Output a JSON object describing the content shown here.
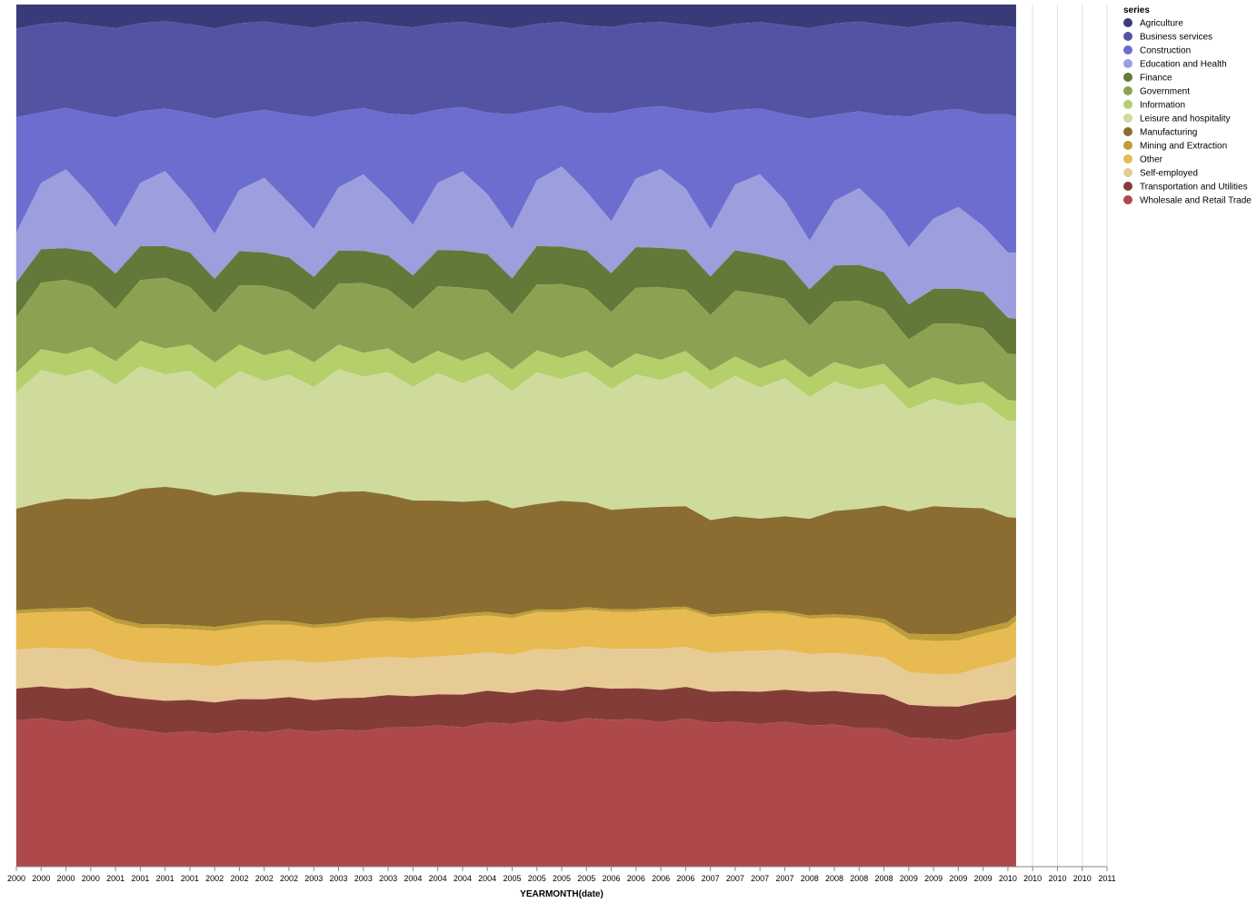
{
  "chart_data": {
    "type": "area",
    "stacked": "normalize",
    "x_label": "YEARMONTH(date)",
    "legend_title": "series",
    "legend_position": "right",
    "grid": true,
    "xlim": [
      2000,
      2011
    ],
    "xticks": [
      2000,
      {
        "value": 2000.25,
        "label": "2000"
      },
      {
        "value": 2000.5,
        "label": "2000"
      },
      {
        "value": 2000.75,
        "label": "2000"
      },
      2001,
      {
        "value": 2001.25,
        "label": "2001"
      },
      {
        "value": 2001.5,
        "label": "2001"
      },
      {
        "value": 2001.75,
        "label": "2001"
      },
      2002,
      {
        "value": 2002.25,
        "label": "2002"
      },
      {
        "value": 2002.5,
        "label": "2002"
      },
      {
        "value": 2002.75,
        "label": "2002"
      },
      2003,
      {
        "value": 2003.25,
        "label": "2003"
      },
      {
        "value": 2003.5,
        "label": "2003"
      },
      {
        "value": 2003.75,
        "label": "2003"
      },
      2004,
      {
        "value": 2004.25,
        "label": "2004"
      },
      {
        "value": 2004.5,
        "label": "2004"
      },
      {
        "value": 2004.75,
        "label": "2004"
      },
      2005,
      {
        "value": 2005.25,
        "label": "2005"
      },
      {
        "value": 2005.5,
        "label": "2005"
      },
      {
        "value": 2005.75,
        "label": "2005"
      },
      2006,
      {
        "value": 2006.25,
        "label": "2006"
      },
      {
        "value": 2006.5,
        "label": "2006"
      },
      {
        "value": 2006.75,
        "label": "2006"
      },
      2007,
      {
        "value": 2007.25,
        "label": "2007"
      },
      {
        "value": 2007.5,
        "label": "2007"
      },
      {
        "value": 2007.75,
        "label": "2007"
      },
      2008,
      {
        "value": 2008.25,
        "label": "2008"
      },
      {
        "value": 2008.5,
        "label": "2008"
      },
      {
        "value": 2008.75,
        "label": "2008"
      },
      2009,
      {
        "value": 2009.25,
        "label": "2009"
      },
      {
        "value": 2009.5,
        "label": "2009"
      },
      {
        "value": 2009.75,
        "label": "2009"
      },
      2010,
      {
        "value": 2010.25,
        "label": "2010"
      },
      {
        "value": 2010.5,
        "label": "2010"
      },
      {
        "value": 2010.75,
        "label": "2010"
      },
      2011
    ],
    "x": [
      2000,
      2000.25,
      2000.5,
      2000.75,
      2001,
      2001.25,
      2001.5,
      2001.75,
      2002,
      2002.25,
      2002.5,
      2002.75,
      2003,
      2003.25,
      2003.5,
      2003.75,
      2004,
      2004.25,
      2004.5,
      2004.75,
      2005,
      2005.25,
      2005.5,
      2005.75,
      2006,
      2006.25,
      2006.5,
      2006.75,
      2007,
      2007.25,
      2007.5,
      2007.75,
      2008,
      2008.25,
      2008.5,
      2008.75,
      2009,
      2009.25,
      2009.5,
      2009.75,
      2010,
      2010.083
    ],
    "series": [
      {
        "name": "Agriculture",
        "color": "#393b79",
        "values": [
          2.8,
          2.2,
          2.0,
          2.4,
          2.8,
          2.2,
          2.0,
          2.4,
          2.9,
          2.2,
          2.0,
          2.4,
          2.8,
          2.2,
          2.0,
          2.4,
          2.7,
          2.2,
          2.0,
          2.4,
          2.8,
          2.2,
          2.0,
          2.4,
          2.6,
          2.1,
          2.0,
          2.3,
          2.7,
          2.2,
          2.0,
          2.4,
          2.8,
          2.2,
          2.0,
          2.4,
          2.8,
          2.3,
          2.1,
          2.5,
          2.6,
          2.7
        ]
      },
      {
        "name": "Business services",
        "color": "#5254a3",
        "values": [
          10.3,
          10.0,
          9.8,
          10.2,
          10.6,
          10.4,
          10.5,
          10.8,
          11.0,
          10.6,
          10.4,
          10.6,
          10.8,
          10.4,
          10.2,
          10.5,
          10.4,
          10.0,
          9.9,
          10.2,
          10.1,
          9.8,
          9.6,
          10.0,
          10.0,
          9.7,
          9.6,
          9.8,
          10.0,
          9.8,
          9.9,
          10.3,
          10.8,
          10.6,
          10.5,
          10.8,
          10.9,
          10.6,
          10.7,
          10.8,
          10.5,
          10.6
        ]
      },
      {
        "name": "Construction",
        "color": "#6b6ecf",
        "values": [
          13.4,
          8.0,
          7.0,
          9.5,
          13.0,
          8.5,
          7.5,
          10.5,
          14.0,
          9.0,
          8.0,
          10.5,
          13.5,
          9.0,
          7.8,
          10.0,
          13.0,
          8.5,
          7.5,
          9.5,
          13.5,
          8.0,
          7.0,
          9.0,
          12.5,
          8.0,
          7.2,
          9.0,
          13.5,
          8.5,
          7.5,
          10.0,
          14.5,
          10.0,
          9.0,
          11.5,
          16.0,
          13.0,
          12.0,
          13.5,
          16.5,
          16.0
        ]
      },
      {
        "name": "Education and Health",
        "color": "#9c9ede",
        "values": [
          5.8,
          7.5,
          9.0,
          6.5,
          5.5,
          7.5,
          9.0,
          6.5,
          5.5,
          7.2,
          8.8,
          6.5,
          5.8,
          7.5,
          9.0,
          6.8,
          6.0,
          7.8,
          9.2,
          7.0,
          5.8,
          7.5,
          9.2,
          6.8,
          6.0,
          7.8,
          9.0,
          7.0,
          5.5,
          7.5,
          9.2,
          7.0,
          5.8,
          7.5,
          9.0,
          7.2,
          7.0,
          8.5,
          10.0,
          8.0,
          7.8,
          7.8
        ]
      },
      {
        "name": "Finance",
        "color": "#637939",
        "values": [
          4.0,
          3.8,
          3.6,
          4.0,
          4.2,
          4.0,
          3.8,
          4.2,
          4.2,
          4.0,
          3.9,
          4.1,
          4.0,
          3.9,
          3.8,
          4.0,
          4.0,
          4.2,
          4.3,
          4.2,
          4.2,
          4.4,
          4.3,
          4.4,
          4.5,
          4.6,
          4.5,
          4.6,
          4.5,
          4.6,
          4.5,
          4.4,
          4.3,
          4.2,
          4.2,
          4.4,
          4.3,
          4.2,
          4.3,
          4.4,
          4.3,
          4.2
        ]
      },
      {
        "name": "Government",
        "color": "#8ca252",
        "values": [
          6.5,
          7.5,
          8.5,
          7.0,
          6.2,
          7.2,
          8.5,
          7.0,
          6.0,
          7.0,
          8.2,
          6.8,
          6.3,
          7.2,
          8.2,
          7.0,
          6.5,
          7.5,
          8.5,
          7.2,
          6.5,
          7.5,
          8.5,
          7.0,
          6.5,
          7.5,
          8.3,
          7.0,
          6.5,
          7.5,
          8.5,
          7.0,
          6.2,
          7.0,
          8.0,
          6.5,
          6.0,
          6.5,
          7.5,
          6.5,
          5.5,
          5.5
        ]
      },
      {
        "name": "Information",
        "color": "#b5cf6b",
        "values": [
          2.3,
          2.4,
          2.5,
          2.6,
          2.8,
          3.0,
          3.1,
          3.2,
          3.2,
          3.1,
          3.0,
          3.0,
          3.0,
          2.9,
          2.8,
          2.8,
          2.7,
          2.6,
          2.6,
          2.5,
          2.5,
          2.5,
          2.4,
          2.4,
          2.4,
          2.4,
          2.3,
          2.3,
          2.2,
          2.2,
          2.2,
          2.2,
          2.3,
          2.3,
          2.4,
          2.4,
          2.5,
          2.6,
          2.5,
          2.5,
          2.5,
          2.3
        ]
      },
      {
        "name": "Leisure and hospitality",
        "color": "#cedb9c",
        "values": [
          13.5,
          15.0,
          14.0,
          15.0,
          13.2,
          14.5,
          13.5,
          14.5,
          13.0,
          14.2,
          13.2,
          14.2,
          13.2,
          14.5,
          13.5,
          14.5,
          13.5,
          14.8,
          13.8,
          14.8,
          13.8,
          15.0,
          14.0,
          15.0,
          14.0,
          15.2,
          14.5,
          15.5,
          15.2,
          16.0,
          15.0,
          16.0,
          14.5,
          15.0,
          14.0,
          14.5,
          12.5,
          13.0,
          12.5,
          12.8,
          11.5,
          11.5
        ]
      },
      {
        "name": "Manufacturing",
        "color": "#8c6d31",
        "values": [
          11.8,
          12.0,
          12.5,
          12.5,
          14.5,
          16.0,
          16.5,
          16.5,
          16.0,
          15.5,
          15.0,
          15.0,
          15.5,
          15.5,
          15.0,
          14.5,
          14.0,
          13.5,
          13.0,
          13.0,
          12.5,
          12.0,
          12.5,
          12.0,
          11.5,
          11.5,
          11.5,
          11.5,
          11.0,
          11.0,
          10.5,
          11.0,
          11.5,
          12.0,
          12.5,
          13.5,
          15.0,
          15.5,
          15.5,
          14.5,
          12.5,
          11.5
        ]
      },
      {
        "name": "Mining and Extraction",
        "color": "#bd9e39",
        "values": [
          0.4,
          0.4,
          0.4,
          0.5,
          0.5,
          0.5,
          0.5,
          0.5,
          0.5,
          0.5,
          0.5,
          0.4,
          0.4,
          0.4,
          0.4,
          0.4,
          0.4,
          0.4,
          0.4,
          0.4,
          0.4,
          0.3,
          0.3,
          0.3,
          0.3,
          0.3,
          0.3,
          0.3,
          0.3,
          0.3,
          0.3,
          0.3,
          0.4,
          0.4,
          0.4,
          0.5,
          0.7,
          0.8,
          0.8,
          0.7,
          0.7,
          0.7
        ]
      },
      {
        "name": "Other",
        "color": "#e7ba52",
        "values": [
          4.2,
          4.0,
          4.2,
          4.3,
          4.2,
          4.0,
          4.2,
          4.2,
          4.3,
          4.1,
          4.3,
          4.2,
          4.2,
          4.1,
          4.3,
          4.3,
          4.3,
          4.2,
          4.4,
          4.3,
          4.3,
          4.2,
          4.3,
          4.2,
          4.3,
          4.2,
          4.4,
          4.3,
          4.2,
          4.1,
          4.3,
          4.2,
          4.2,
          4.1,
          4.2,
          4.1,
          4.0,
          4.0,
          4.1,
          4.0,
          4.0,
          4.2
        ]
      },
      {
        "name": "Self-employed",
        "color": "#e7cb94",
        "values": [
          4.5,
          4.4,
          4.6,
          4.5,
          4.4,
          4.3,
          4.5,
          4.4,
          4.4,
          4.3,
          4.5,
          4.4,
          4.5,
          4.4,
          4.6,
          4.5,
          4.5,
          4.4,
          4.6,
          4.5,
          4.5,
          4.6,
          4.7,
          4.6,
          4.6,
          4.5,
          4.7,
          4.6,
          4.5,
          4.5,
          4.7,
          4.6,
          4.5,
          4.4,
          4.5,
          4.4,
          4.0,
          3.9,
          4.0,
          4.2,
          4.5,
          4.5
        ]
      },
      {
        "name": "Transportation and Utilities",
        "color": "#843c39",
        "values": [
          3.7,
          3.6,
          3.8,
          3.7,
          3.8,
          3.7,
          3.9,
          3.8,
          3.8,
          3.7,
          3.9,
          3.8,
          3.8,
          3.7,
          3.9,
          3.8,
          3.7,
          3.6,
          3.8,
          3.7,
          3.6,
          3.5,
          3.7,
          3.6,
          3.6,
          3.5,
          3.7,
          3.6,
          3.6,
          3.5,
          3.7,
          3.7,
          4.0,
          3.9,
          4.1,
          4.0,
          4.0,
          3.9,
          4.1,
          4.0,
          4.0,
          4.1
        ]
      },
      {
        "name": "Wholesale and Retail Trade",
        "color": "#ad494a",
        "values": [
          17.0,
          16.8,
          16.5,
          17.0,
          16.5,
          16.2,
          16.0,
          16.5,
          16.2,
          16.0,
          15.8,
          16.3,
          16.3,
          16.2,
          16.0,
          16.5,
          16.5,
          16.4,
          16.2,
          16.8,
          16.8,
          16.7,
          16.5,
          17.0,
          17.0,
          16.8,
          16.5,
          17.0,
          16.8,
          16.5,
          16.3,
          16.8,
          16.8,
          16.5,
          16.2,
          16.5,
          15.8,
          15.5,
          15.5,
          16.0,
          16.0,
          16.2
        ]
      }
    ]
  }
}
